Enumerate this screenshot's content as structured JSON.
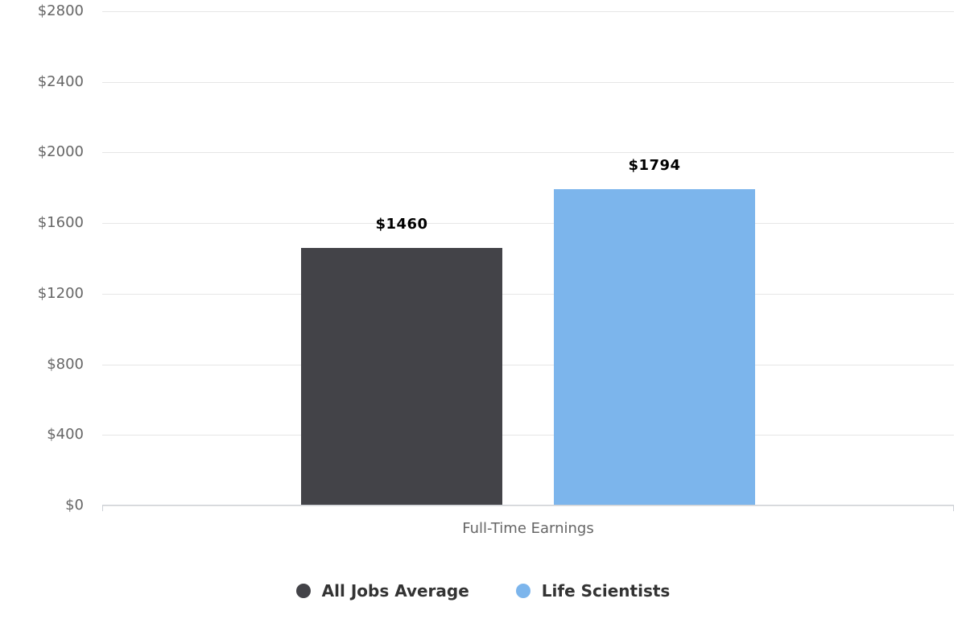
{
  "chart_data": {
    "type": "bar",
    "title": "",
    "categories": [
      "Full-Time Earnings"
    ],
    "series": [
      {
        "name": "All Jobs Average",
        "values": [
          1460
        ],
        "color": "#434348"
      },
      {
        "name": "Life Scientists",
        "values": [
          1794
        ],
        "color": "#7cb5ec"
      }
    ],
    "value_labels": [
      "$1460",
      "$1794"
    ],
    "xlabel": "Full-Time Earnings",
    "ylabel": "",
    "ylim": [
      0,
      2800
    ],
    "ytick_interval": 400,
    "yticks": [
      "$0",
      "$400",
      "$800",
      "$1200",
      "$1600",
      "$2000",
      "$2400",
      "$2800"
    ],
    "grid": true,
    "legend_position": "bottom"
  },
  "legend": {
    "items": [
      {
        "label": "All Jobs Average",
        "color": "#434348"
      },
      {
        "label": "Life Scientists",
        "color": "#7cb5ec"
      }
    ]
  },
  "colors": {
    "gridline": "#e6e6e6",
    "axis_line": "#ccd0d6",
    "tick_label": "#666666",
    "value_label": "#000000",
    "legend_text": "#333333"
  }
}
